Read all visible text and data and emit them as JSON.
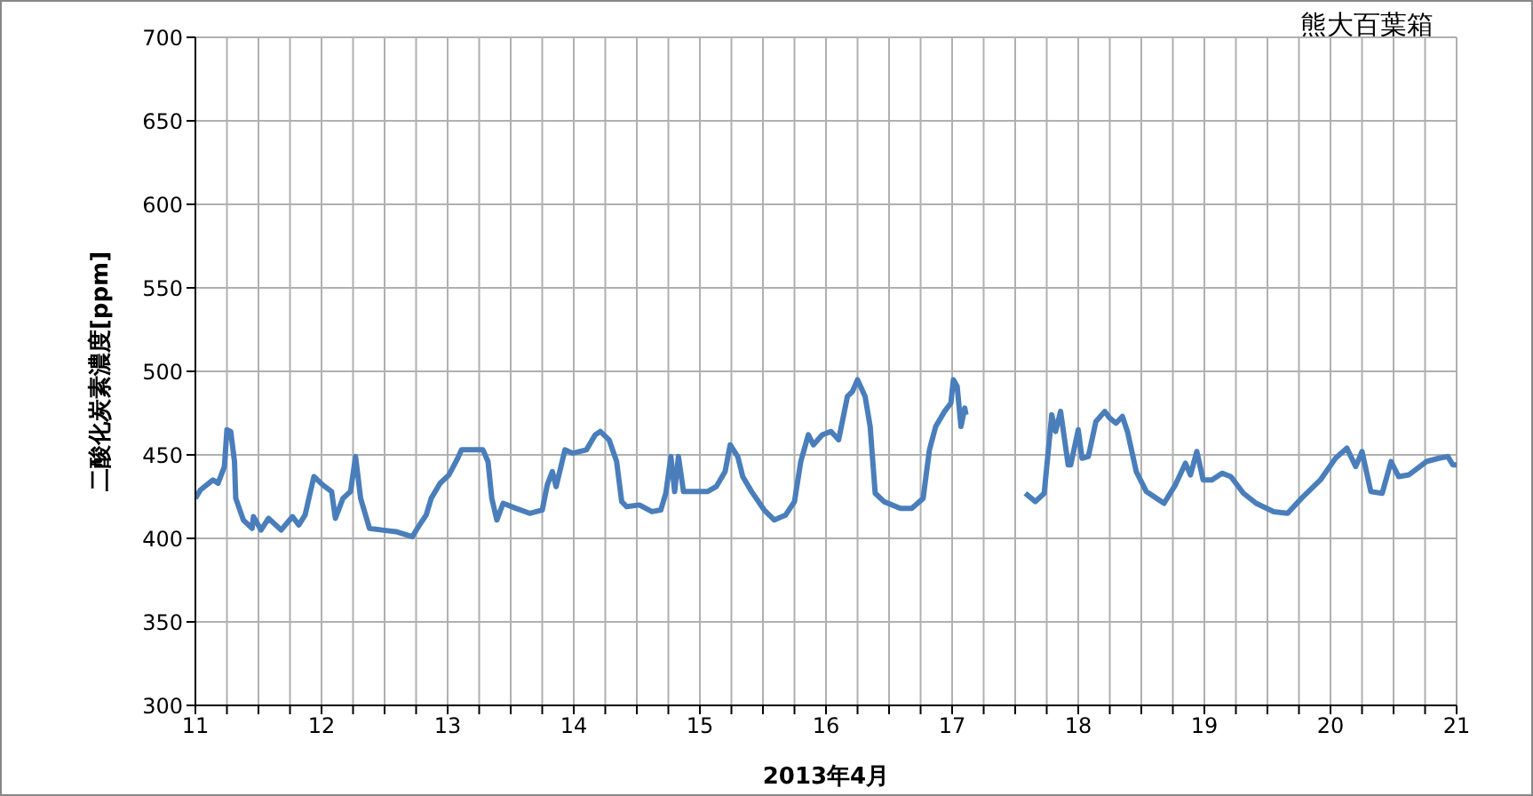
{
  "chart_data": {
    "type": "line",
    "title": "熊大百葉箱",
    "xlabel": "2013年4月",
    "ylabel": "二酸化炭素濃度[ppm]",
    "xlim": [
      11,
      21
    ],
    "ylim": [
      300,
      700
    ],
    "xticks": [
      11,
      {
        "value": 11.25,
        "label": null
      },
      {
        "value": 11.5,
        "label": null
      },
      {
        "value": 11.75,
        "label": null
      },
      12,
      {
        "value": 12.25,
        "label": null
      },
      {
        "value": 12.5,
        "label": null
      },
      {
        "value": 12.75,
        "label": null
      },
      13,
      {
        "value": 13.25,
        "label": null
      },
      {
        "value": 13.5,
        "label": null
      },
      {
        "value": 13.75,
        "label": null
      },
      14,
      {
        "value": 14.25,
        "label": null
      },
      {
        "value": 14.5,
        "label": null
      },
      {
        "value": 14.75,
        "label": null
      },
      15,
      {
        "value": 15.25,
        "label": null
      },
      {
        "value": 15.5,
        "label": null
      },
      {
        "value": 15.75,
        "label": null
      },
      16,
      {
        "value": 16.25,
        "label": null
      },
      {
        "value": 16.5,
        "label": null
      },
      {
        "value": 16.75,
        "label": null
      },
      17,
      {
        "value": 17.25,
        "label": null
      },
      {
        "value": 17.5,
        "label": null
      },
      {
        "value": 17.75,
        "label": null
      },
      18,
      {
        "value": 18.25,
        "label": null
      },
      {
        "value": 18.5,
        "label": null
      },
      {
        "value": 18.75,
        "label": null
      },
      19,
      {
        "value": 19.25,
        "label": null
      },
      {
        "value": 19.5,
        "label": null
      },
      {
        "value": 19.75,
        "label": null
      },
      20,
      {
        "value": 20.25,
        "label": null
      },
      {
        "value": 20.5,
        "label": null
      },
      {
        "value": 20.75,
        "label": null
      },
      21
    ],
    "yticks": [
      300,
      350,
      400,
      450,
      500,
      550,
      600,
      650,
      700
    ],
    "grid": true,
    "marker": "none",
    "line_style": "solid",
    "x": [
      11,
      11.04,
      11.14,
      11.18,
      11.23,
      11.25,
      11.28,
      11.31,
      11.32,
      11.38,
      11.45,
      11.46,
      11.52,
      11.58,
      11.68,
      11.77,
      11.82,
      11.87,
      11.9,
      11.94,
      12.01,
      12.08,
      12.11,
      12.17,
      12.23,
      12.27,
      12.31,
      12.38,
      12.48,
      12.59,
      12.72,
      12.76,
      12.83,
      12.87,
      12.94,
      13.01,
      13.08,
      13.11,
      13.21,
      13.28,
      13.32,
      13.35,
      13.39,
      13.44,
      13.54,
      13.65,
      13.75,
      13.79,
      13.83,
      13.86,
      13.93,
      13.99,
      14.1,
      14.17,
      14.21,
      14.28,
      14.34,
      14.38,
      14.42,
      14.52,
      14.62,
      14.69,
      14.73,
      14.77,
      14.8,
      14.83,
      14.87,
      15.06,
      15.13,
      15.2,
      15.24,
      15.3,
      15.34,
      15.41,
      15.51,
      15.59,
      15.68,
      15.75,
      15.8,
      15.86,
      15.9,
      15.97,
      16.04,
      16.1,
      16.17,
      16.21,
      16.25,
      16.31,
      16.35,
      16.39,
      16.46,
      16.59,
      16.68,
      16.77,
      16.82,
      16.87,
      16.94,
      16.99,
      17.01,
      17.04,
      17.07,
      17.1,
      17.11,
      17.4,
      17.58,
      17.66,
      17.73,
      17.79,
      17.82,
      17.86,
      17.92,
      17.94,
      18,
      18.03,
      18.08,
      18.14,
      18.21,
      18.25,
      18.3,
      18.35,
      18.39,
      18.46,
      18.54,
      18.68,
      18.77,
      18.85,
      18.89,
      18.94,
      18.99,
      19.06,
      19.14,
      19.21,
      19.31,
      19.41,
      19.55,
      19.66,
      19.77,
      19.92,
      20.04,
      20.13,
      20.2,
      20.25,
      20.32,
      20.41,
      20.48,
      20.54,
      20.62,
      20.76,
      20.86,
      20.93,
      20.97,
      21
    ],
    "values": [
      424,
      429,
      435,
      433,
      443,
      465,
      464,
      446,
      424,
      411,
      406,
      413,
      405,
      412,
      405,
      413,
      408,
      414,
      424,
      437,
      432,
      428,
      412,
      424,
      428,
      449,
      424,
      406,
      405,
      404,
      401,
      406,
      414,
      424,
      433,
      438,
      448,
      453,
      453,
      453,
      446,
      424,
      411,
      421,
      418,
      415,
      417,
      432,
      440,
      431,
      453,
      451,
      453,
      462,
      464,
      459,
      446,
      422,
      419,
      420,
      416,
      417,
      427,
      449,
      428,
      449,
      428,
      428,
      431,
      440,
      456,
      449,
      437,
      428,
      417,
      411,
      414,
      422,
      446,
      462,
      456,
      462,
      464,
      459,
      485,
      488,
      495,
      485,
      467,
      427,
      422,
      418,
      418,
      424,
      453,
      467,
      476,
      481,
      495,
      491,
      467,
      478,
      474,
      null,
      427,
      422,
      427,
      474,
      464,
      476,
      444,
      444,
      465,
      448,
      449,
      470,
      476,
      472,
      469,
      473,
      464,
      440,
      428,
      421,
      432,
      445,
      438,
      452,
      435,
      435,
      439,
      437,
      427,
      421,
      416,
      415,
      424,
      435,
      448,
      454,
      443,
      452,
      428,
      427,
      446,
      437,
      438,
      446,
      448,
      449,
      444,
      444
    ],
    "color": "#4a7ebb"
  }
}
